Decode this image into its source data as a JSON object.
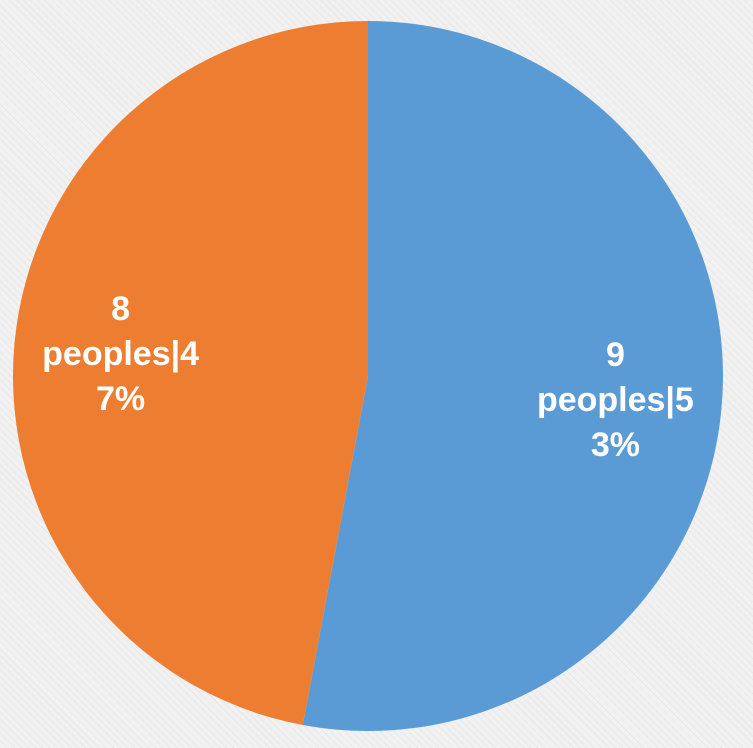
{
  "chart_data": {
    "type": "pie",
    "start_angle_deg": 0,
    "direction": "clockwise",
    "slices": [
      {
        "value": 9,
        "percent": 53,
        "color": "#5b9bd5",
        "label_lines": [
          "9",
          "peoples|5",
          "3%"
        ]
      },
      {
        "value": 8,
        "percent": 47,
        "color": "#ed7d31",
        "label_lines": [
          "8",
          "peoples|4",
          "7%"
        ]
      }
    ],
    "legend": "none"
  }
}
